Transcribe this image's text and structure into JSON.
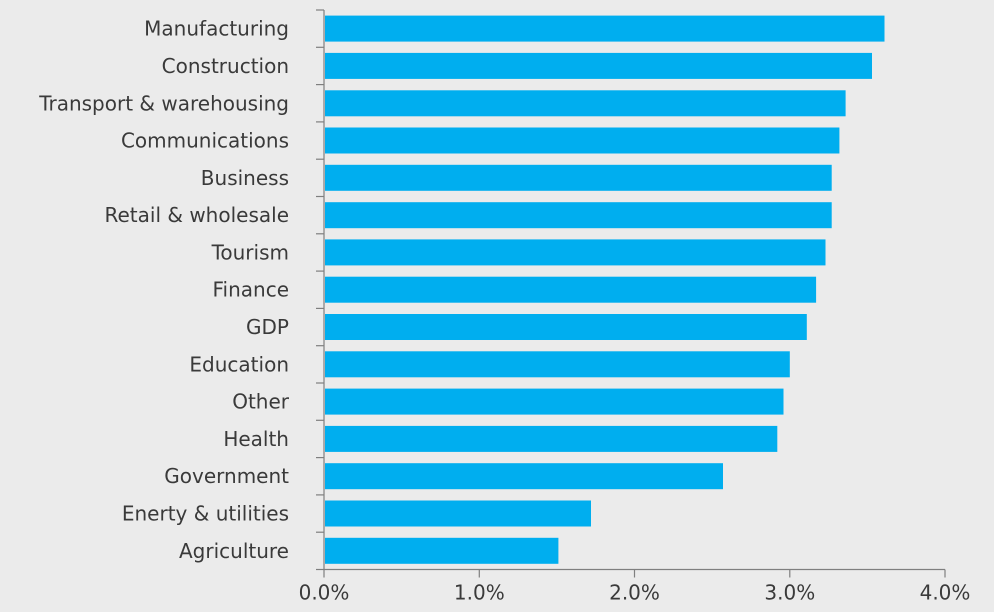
{
  "chart_data": {
    "type": "bar",
    "orientation": "horizontal",
    "categories": [
      "Manufacturing",
      "Construction",
      "Transport & warehousing",
      "Communications",
      "Business",
      "Retail & wholesale",
      "Tourism",
      "Finance",
      "GDP",
      "Education",
      "Other",
      "Health",
      "Government",
      "Enerty & utilities",
      "Agriculture"
    ],
    "values": [
      3.61,
      3.53,
      3.36,
      3.32,
      3.27,
      3.27,
      3.23,
      3.17,
      3.11,
      3.0,
      2.96,
      2.92,
      2.57,
      1.72,
      1.51
    ],
    "xlim": [
      0,
      4.0
    ],
    "xticks": [
      0,
      1.0,
      2.0,
      3.0,
      4.0
    ],
    "xtick_labels": [
      "0.0%",
      "1.0%",
      "2.0%",
      "3.0%",
      "4.0%"
    ],
    "title": "",
    "xlabel": "",
    "ylabel": "",
    "grid": false,
    "legend": "none",
    "colors": {
      "bar": "#00aeef",
      "axis": "#7f7f7f",
      "background": "#ebebeb",
      "text": "#3a3a3a"
    }
  }
}
